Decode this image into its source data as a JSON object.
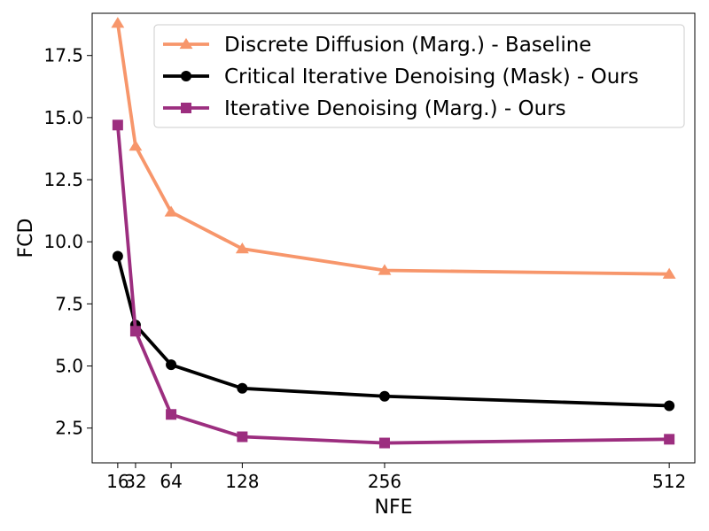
{
  "chart_data": {
    "type": "line",
    "xlabel": "NFE",
    "ylabel": "FCD",
    "xlim": [
      -7,
      535
    ],
    "ylim": [
      1.1,
      19.2
    ],
    "x_ticks": [
      16,
      32,
      64,
      128,
      256,
      512
    ],
    "x_tick_labels": [
      "16",
      "32",
      "64",
      "128",
      "256",
      "512"
    ],
    "y_ticks": [
      2.5,
      5.0,
      7.5,
      10.0,
      12.5,
      15.0,
      17.5
    ],
    "y_tick_labels": [
      "2.5",
      "5.0",
      "7.5",
      "10.0",
      "12.5",
      "15.0",
      "17.5"
    ],
    "grid": false,
    "legend_position": "top-right",
    "x": [
      16,
      32,
      64,
      128,
      256,
      512
    ],
    "series": [
      {
        "name": "Discrete Diffusion (Marg.) - Baseline",
        "color": "#f7966b",
        "marker": "triangle",
        "values": [
          18.8,
          13.85,
          11.2,
          9.72,
          8.85,
          8.7
        ]
      },
      {
        "name": "Critical Iterative Denoising (Mask) - Ours",
        "color": "#000000",
        "marker": "circle",
        "values": [
          9.42,
          6.65,
          5.05,
          4.1,
          3.78,
          3.4
        ]
      },
      {
        "name": "Iterative Denoising (Marg.) - Ours",
        "color": "#9c2e7f",
        "marker": "square",
        "values": [
          14.7,
          6.4,
          3.05,
          2.15,
          1.9,
          2.05
        ]
      }
    ]
  }
}
